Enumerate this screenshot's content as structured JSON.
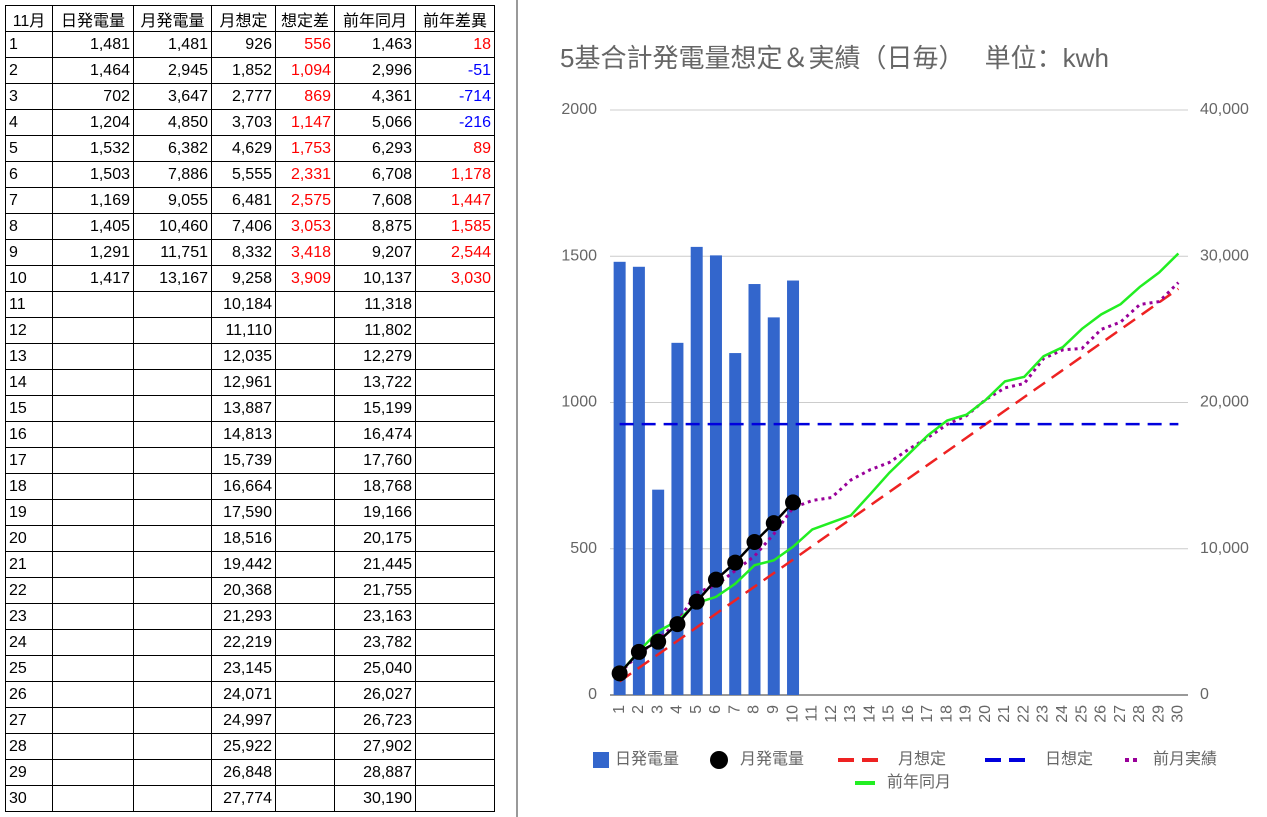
{
  "table": {
    "header": [
      "11月",
      "日発電量",
      "月発電量",
      "月想定",
      "想定差",
      "前年同月",
      "前年差異"
    ],
    "rows": [
      [
        "1",
        "1,481",
        "1,481",
        "926",
        "556",
        "1,463",
        "18"
      ],
      [
        "2",
        "1,464",
        "2,945",
        "1,852",
        "1,094",
        "2,996",
        "-51"
      ],
      [
        "3",
        "702",
        "3,647",
        "2,777",
        "869",
        "4,361",
        "-714"
      ],
      [
        "4",
        "1,204",
        "4,850",
        "3,703",
        "1,147",
        "5,066",
        "-216"
      ],
      [
        "5",
        "1,532",
        "6,382",
        "4,629",
        "1,753",
        "6,293",
        "89"
      ],
      [
        "6",
        "1,503",
        "7,886",
        "5,555",
        "2,331",
        "6,708",
        "1,178"
      ],
      [
        "7",
        "1,169",
        "9,055",
        "6,481",
        "2,575",
        "7,608",
        "1,447"
      ],
      [
        "8",
        "1,405",
        "10,460",
        "7,406",
        "3,053",
        "8,875",
        "1,585"
      ],
      [
        "9",
        "1,291",
        "11,751",
        "8,332",
        "3,418",
        "9,207",
        "2,544"
      ],
      [
        "10",
        "1,417",
        "13,167",
        "9,258",
        "3,909",
        "10,137",
        "3,030"
      ],
      [
        "11",
        null,
        null,
        "10,184",
        null,
        "11,318",
        null
      ],
      [
        "12",
        null,
        null,
        "11,110",
        null,
        "11,802",
        null
      ],
      [
        "13",
        null,
        null,
        "12,035",
        null,
        "12,279",
        null
      ],
      [
        "14",
        null,
        null,
        "12,961",
        null,
        "13,722",
        null
      ],
      [
        "15",
        null,
        null,
        "13,887",
        null,
        "15,199",
        null
      ],
      [
        "16",
        null,
        null,
        "14,813",
        null,
        "16,474",
        null
      ],
      [
        "17",
        null,
        null,
        "15,739",
        null,
        "17,760",
        null
      ],
      [
        "18",
        null,
        null,
        "16,664",
        null,
        "18,768",
        null
      ],
      [
        "19",
        null,
        null,
        "17,590",
        null,
        "19,166",
        null
      ],
      [
        "20",
        null,
        null,
        "18,516",
        null,
        "20,175",
        null
      ],
      [
        "21",
        null,
        null,
        "19,442",
        null,
        "21,445",
        null
      ],
      [
        "22",
        null,
        null,
        "20,368",
        null,
        "21,755",
        null
      ],
      [
        "23",
        null,
        null,
        "21,293",
        null,
        "23,163",
        null
      ],
      [
        "24",
        null,
        null,
        "22,219",
        null,
        "23,782",
        null
      ],
      [
        "25",
        null,
        null,
        "23,145",
        null,
        "25,040",
        null
      ],
      [
        "26",
        null,
        null,
        "24,071",
        null,
        "26,027",
        null
      ],
      [
        "27",
        null,
        null,
        "24,997",
        null,
        "26,723",
        null
      ],
      [
        "28",
        null,
        null,
        "25,922",
        null,
        "27,902",
        null
      ],
      [
        "29",
        null,
        null,
        "26,848",
        null,
        "28,887",
        null
      ],
      [
        "30",
        null,
        null,
        "27,774",
        null,
        "30,190",
        null
      ]
    ]
  },
  "chart_data": {
    "type": "combo",
    "title": "5基合計発電量想定＆実績（日毎）　 単位：kwh",
    "categories": [
      "1",
      "2",
      "3",
      "4",
      "5",
      "6",
      "7",
      "8",
      "9",
      "10",
      "11",
      "12",
      "13",
      "14",
      "15",
      "16",
      "17",
      "18",
      "19",
      "20",
      "21",
      "22",
      "23",
      "24",
      "25",
      "26",
      "27",
      "28",
      "29",
      "30"
    ],
    "ylim": [
      0,
      2000
    ],
    "yticks": [
      0,
      500,
      1000,
      1500,
      2000
    ],
    "y2lim": [
      0,
      40000
    ],
    "y2ticks": [
      0,
      {
        "value": 10000,
        "label": "10,000"
      },
      {
        "value": 20000,
        "label": "20,000"
      },
      {
        "value": 30000,
        "label": "30,000"
      },
      {
        "value": 40000,
        "label": "40,000"
      }
    ],
    "grid": true,
    "legend": "bottom",
    "series": [
      {
        "name": "日発電量",
        "type": "bar",
        "color": "#3366cc",
        "values": [
          1481,
          1464,
          702,
          1204,
          1532,
          1503,
          1169,
          1405,
          1291,
          1417,
          null,
          null,
          null,
          null,
          null,
          null,
          null,
          null,
          null,
          null,
          null,
          null,
          null,
          null,
          null,
          null,
          null,
          null,
          null,
          null
        ]
      },
      {
        "name": "月発電量",
        "type": "line",
        "marker": "circle",
        "color": "#000000",
        "axis": "y2",
        "values": [
          1481,
          2945,
          3647,
          4850,
          6382,
          7886,
          9055,
          10460,
          11751,
          13167,
          null,
          null,
          null,
          null,
          null,
          null,
          null,
          null,
          null,
          null,
          null,
          null,
          null,
          null,
          null,
          null,
          null,
          null,
          null,
          null
        ]
      },
      {
        "name": "月想定",
        "type": "line",
        "dash": "dashed",
        "color": "#ee2222",
        "axis": "y2",
        "values": [
          926,
          1852,
          2777,
          3703,
          4629,
          5555,
          6481,
          7406,
          8332,
          9258,
          10184,
          11110,
          12035,
          12961,
          13887,
          14813,
          15739,
          16664,
          17590,
          18516,
          19442,
          20368,
          21293,
          22219,
          23145,
          24071,
          24997,
          25922,
          26848,
          27774
        ]
      },
      {
        "name": "日想定",
        "type": "line",
        "dash": "dashed",
        "color": "#0000dd",
        "values": [
          926,
          926,
          926,
          926,
          926,
          926,
          926,
          926,
          926,
          926,
          926,
          926,
          926,
          926,
          926,
          926,
          926,
          926,
          926,
          926,
          926,
          926,
          926,
          926,
          926,
          926,
          926,
          926,
          926,
          926
        ]
      },
      {
        "name": "前月実績",
        "type": "line",
        "dash": "dotted",
        "color": "#990099",
        "axis": "y2",
        "values": [
          1500,
          2800,
          3800,
          5000,
          7000,
          7500,
          8500,
          9500,
          11000,
          12800,
          13300,
          13500,
          14700,
          15400,
          15900,
          16800,
          17600,
          18500,
          19100,
          20200,
          21000,
          21300,
          23000,
          23600,
          23700,
          25000,
          25500,
          26700,
          26900,
          28200
        ]
      },
      {
        "name": "前年同月",
        "type": "line",
        "color": "#22ee22",
        "axis": "y2",
        "values": [
          1463,
          2996,
          4361,
          5066,
          6293,
          6708,
          7608,
          8875,
          9207,
          10137,
          11318,
          11802,
          12279,
          13722,
          15199,
          16474,
          17760,
          18768,
          19166,
          20175,
          21445,
          21755,
          23163,
          23782,
          25040,
          26027,
          26723,
          27902,
          28887,
          30190
        ]
      }
    ]
  }
}
